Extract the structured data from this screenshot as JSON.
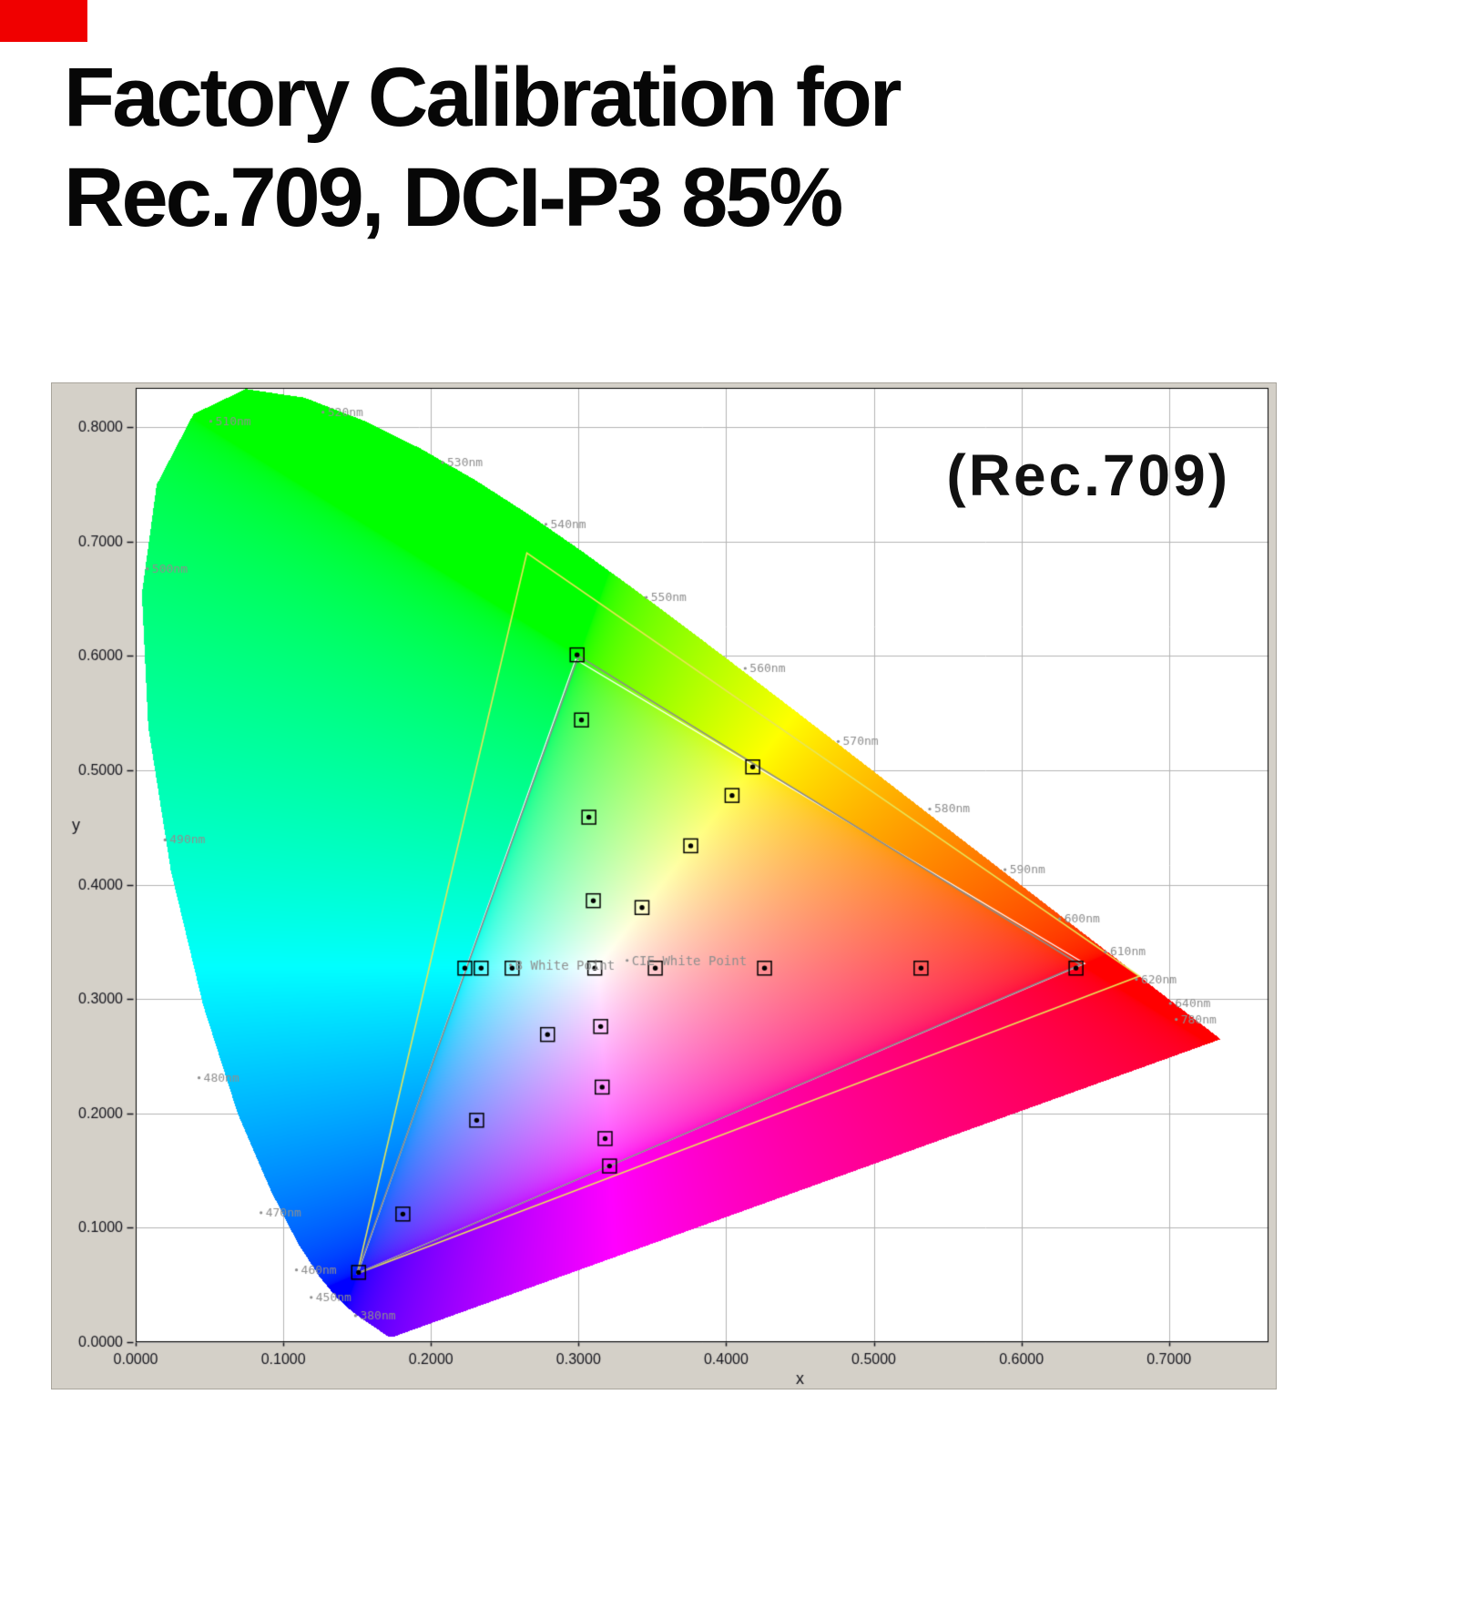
{
  "page": {
    "background": "#ffffff",
    "banner_color": "#f00000"
  },
  "header": {
    "title_line1": "Factory Calibration for",
    "title_line2": "Rec.709, DCI-P3 85%"
  },
  "chart_data": {
    "type": "scatter",
    "subtype": "CIE 1931 xy chromaticity diagram",
    "title": "Factory Calibration for Rec.709, DCI-P3 85%",
    "annotation": "(Rec.709)",
    "xlabel": "x",
    "ylabel": "y",
    "xlim": [
      0,
      0.7674
    ],
    "ylim": [
      0,
      0.8344
    ],
    "grid": true,
    "legend": "none",
    "x_tick_values": [
      0,
      0.1,
      0.2,
      0.3,
      0.4,
      0.5,
      0.6,
      0.7
    ],
    "x_tick_labels": [
      "0.0000",
      "0.1000",
      "0.2000",
      "0.3000",
      "0.4000",
      "0.5000",
      "0.6000",
      "0.7000"
    ],
    "y_tick_values": [
      0,
      0.1,
      0.2,
      0.3,
      0.4,
      0.5,
      0.6,
      0.7,
      0.8
    ],
    "y_tick_labels": [
      "0.0000",
      "0.1000",
      "0.2000",
      "0.3000",
      "0.4000",
      "0.5000",
      "0.6000",
      "0.7000",
      "0.8000"
    ],
    "colors": {
      "panel": "#d4d0c8",
      "plot_bg": "#ffffff",
      "grid": "#b4b4b4",
      "plot_border": "#000000",
      "axis_text": "#15151d",
      "wavelength_text": "#8f8f8f",
      "marker": "#000000",
      "rec709_triangle": "#8a8a8a",
      "dcip3_triangle": "#e9e557",
      "measured_triangle": "#ffffff"
    },
    "gamut_triangles": [
      {
        "name": "DCI-P3",
        "color": "#e9e557",
        "width": 1.6,
        "vertices": [
          [
            0.68,
            0.32
          ],
          [
            0.265,
            0.69
          ],
          [
            0.15,
            0.06
          ]
        ]
      },
      {
        "name": "measured",
        "color": "#ffffff",
        "width": 1.2,
        "vertices": [
          [
            0.643,
            0.331
          ],
          [
            0.298,
            0.597
          ],
          [
            0.1505,
            0.0605
          ]
        ]
      },
      {
        "name": "Rec.709",
        "color": "#8a8a8a",
        "width": 1.6,
        "vertices": [
          [
            0.64,
            0.33
          ],
          [
            0.3,
            0.6
          ],
          [
            0.15,
            0.06
          ]
        ]
      }
    ],
    "white_points": [
      {
        "label": "B White Point",
        "x": 0.257,
        "y": 0.329
      },
      {
        "label": "CIE White Point",
        "x": 0.336,
        "y": 0.333
      }
    ],
    "measurements": [
      [
        0.299,
        0.601
      ],
      [
        0.302,
        0.544
      ],
      [
        0.418,
        0.503
      ],
      [
        0.404,
        0.478
      ],
      [
        0.307,
        0.459
      ],
      [
        0.376,
        0.434
      ],
      [
        0.31,
        0.386
      ],
      [
        0.343,
        0.38
      ],
      [
        0.223,
        0.327
      ],
      [
        0.234,
        0.327
      ],
      [
        0.255,
        0.327
      ],
      [
        0.311,
        0.327
      ],
      [
        0.352,
        0.327
      ],
      [
        0.426,
        0.327
      ],
      [
        0.532,
        0.327
      ],
      [
        0.637,
        0.327
      ],
      [
        0.315,
        0.276
      ],
      [
        0.279,
        0.269
      ],
      [
        0.316,
        0.223
      ],
      [
        0.231,
        0.194
      ],
      [
        0.318,
        0.178
      ],
      [
        0.321,
        0.154
      ],
      [
        0.181,
        0.112
      ],
      [
        0.151,
        0.061
      ]
    ],
    "wavelength_labels": [
      {
        "text": "380nm",
        "x": 0.152,
        "y": 0.02
      },
      {
        "text": "450nm",
        "x": 0.122,
        "y": 0.036
      },
      {
        "text": "460nm",
        "x": 0.112,
        "y": 0.06
      },
      {
        "text": "470nm",
        "x": 0.088,
        "y": 0.11
      },
      {
        "text": "480nm",
        "x": 0.046,
        "y": 0.228
      },
      {
        "text": "490nm",
        "x": 0.023,
        "y": 0.436
      },
      {
        "text": "500nm",
        "x": 0.011,
        "y": 0.673
      },
      {
        "text": "510nm",
        "x": 0.054,
        "y": 0.802
      },
      {
        "text": "520nm",
        "x": 0.13,
        "y": 0.81
      },
      {
        "text": "530nm",
        "x": 0.211,
        "y": 0.766
      },
      {
        "text": "540nm",
        "x": 0.281,
        "y": 0.712
      },
      {
        "text": "550nm",
        "x": 0.349,
        "y": 0.648
      },
      {
        "text": "560nm",
        "x": 0.416,
        "y": 0.586
      },
      {
        "text": "570nm",
        "x": 0.479,
        "y": 0.522
      },
      {
        "text": "580nm",
        "x": 0.541,
        "y": 0.463
      },
      {
        "text": "590nm",
        "x": 0.592,
        "y": 0.41
      },
      {
        "text": "600nm",
        "x": 0.629,
        "y": 0.367
      },
      {
        "text": "610nm",
        "x": 0.66,
        "y": 0.338
      },
      {
        "text": "620nm",
        "x": 0.681,
        "y": 0.314
      },
      {
        "text": "640nm",
        "x": 0.704,
        "y": 0.293
      },
      {
        "text": "780nm",
        "x": 0.708,
        "y": 0.279
      }
    ],
    "spectral_locus": [
      [
        380,
        0.1741,
        0.005
      ],
      [
        390,
        0.1738,
        0.0049
      ],
      [
        400,
        0.1733,
        0.0048
      ],
      [
        410,
        0.1726,
        0.0048
      ],
      [
        420,
        0.1714,
        0.0051
      ],
      [
        430,
        0.1689,
        0.0069
      ],
      [
        440,
        0.1644,
        0.0109
      ],
      [
        445,
        0.1611,
        0.0138
      ],
      [
        450,
        0.1566,
        0.0177
      ],
      [
        455,
        0.151,
        0.0227
      ],
      [
        460,
        0.144,
        0.0297
      ],
      [
        465,
        0.1355,
        0.0399
      ],
      [
        470,
        0.1241,
        0.0578
      ],
      [
        475,
        0.1096,
        0.0868
      ],
      [
        480,
        0.0913,
        0.1327
      ],
      [
        485,
        0.0687,
        0.2007
      ],
      [
        490,
        0.0454,
        0.295
      ],
      [
        495,
        0.0235,
        0.4127
      ],
      [
        500,
        0.0082,
        0.5384
      ],
      [
        505,
        0.0039,
        0.6548
      ],
      [
        510,
        0.0139,
        0.7502
      ],
      [
        515,
        0.0389,
        0.812
      ],
      [
        520,
        0.0743,
        0.8338
      ],
      [
        525,
        0.1142,
        0.8262
      ],
      [
        530,
        0.1547,
        0.8059
      ],
      [
        535,
        0.1929,
        0.7816
      ],
      [
        540,
        0.2296,
        0.7543
      ],
      [
        545,
        0.2658,
        0.7243
      ],
      [
        550,
        0.3016,
        0.6923
      ],
      [
        555,
        0.3373,
        0.6589
      ],
      [
        560,
        0.3731,
        0.6245
      ],
      [
        565,
        0.4087,
        0.5896
      ],
      [
        570,
        0.4441,
        0.5547
      ],
      [
        575,
        0.4788,
        0.5202
      ],
      [
        580,
        0.5125,
        0.4866
      ],
      [
        585,
        0.5448,
        0.4544
      ],
      [
        590,
        0.5752,
        0.4242
      ],
      [
        595,
        0.6029,
        0.3965
      ],
      [
        600,
        0.627,
        0.3725
      ],
      [
        605,
        0.6482,
        0.3514
      ],
      [
        610,
        0.6658,
        0.334
      ],
      [
        615,
        0.6801,
        0.3197
      ],
      [
        620,
        0.6915,
        0.3083
      ],
      [
        630,
        0.7079,
        0.292
      ],
      [
        640,
        0.719,
        0.2809
      ],
      [
        650,
        0.726,
        0.274
      ],
      [
        660,
        0.73,
        0.27
      ],
      [
        680,
        0.7334,
        0.2666
      ],
      [
        700,
        0.7347,
        0.2653
      ]
    ]
  }
}
